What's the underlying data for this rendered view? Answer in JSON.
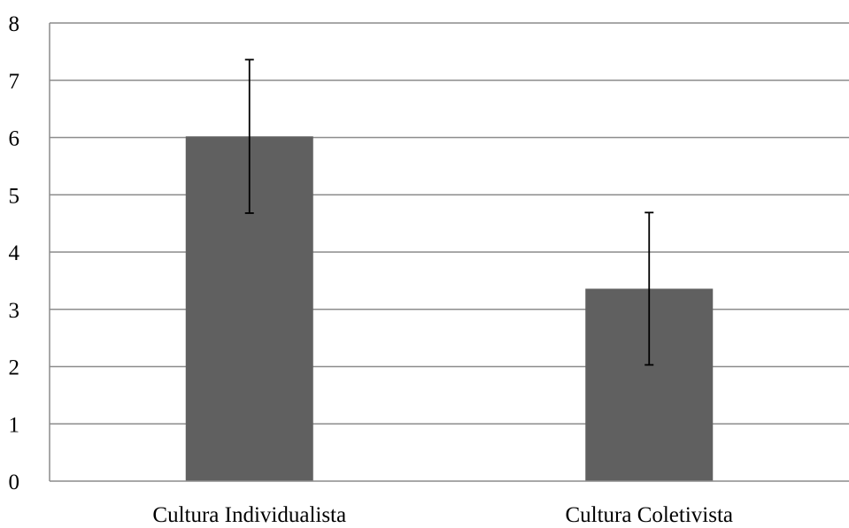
{
  "chart_data": {
    "type": "bar",
    "categories": [
      "Cultura Individualista",
      "Cultura Coletivista"
    ],
    "values": [
      6.02,
      3.36
    ],
    "error_bars": [
      {
        "low": 4.68,
        "high": 7.36
      },
      {
        "low": 2.03,
        "high": 4.69
      }
    ],
    "ylim": [
      0,
      8
    ],
    "yticks": [
      "0",
      "1",
      "2",
      "3",
      "4",
      "5",
      "6",
      "7",
      "8"
    ],
    "grid": true,
    "legend": "none",
    "colors": {
      "bar": "#606060",
      "grid": "#8c8c8c",
      "axis": "#8c8c8c",
      "error_bar": "#000000"
    }
  }
}
